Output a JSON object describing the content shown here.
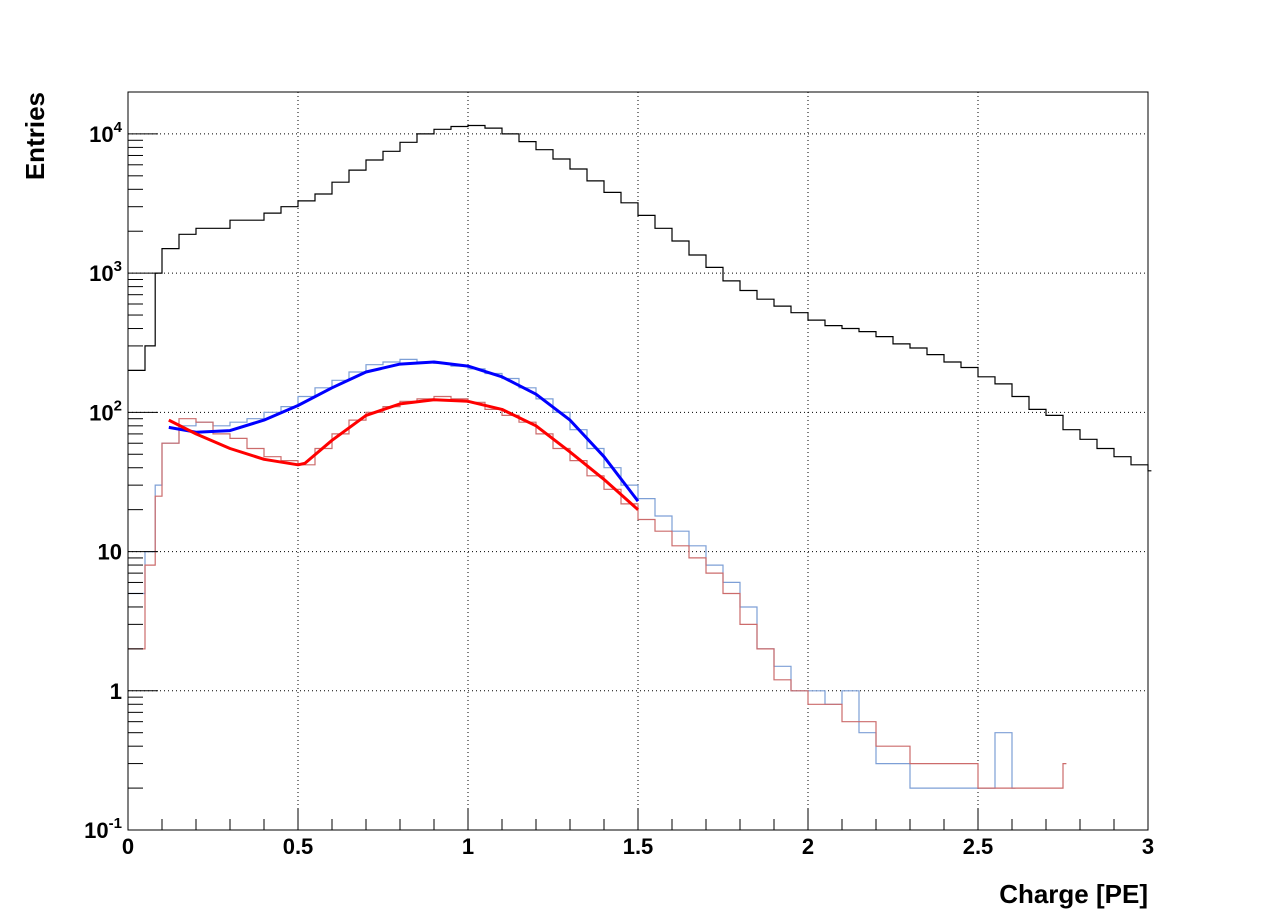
{
  "chart_data": {
    "type": "line",
    "style": "step-histogram",
    "xlabel": "Charge [PE]",
    "ylabel": "Entries",
    "xlim": [
      0,
      3
    ],
    "ylim": [
      0.1,
      20000
    ],
    "y_scale": "log",
    "grid": true,
    "x_ticks": [
      0,
      0.5,
      1,
      1.5,
      2,
      2.5,
      3
    ],
    "x_tick_labels": [
      "0",
      "0.5",
      "1",
      "1.5",
      "2",
      "2.5",
      "3"
    ],
    "y_ticks": [
      {
        "value": 0.1,
        "base": "10",
        "exp": "-1"
      },
      {
        "value": 1,
        "base": "1",
        "exp": ""
      },
      {
        "value": 10,
        "base": "10",
        "exp": ""
      },
      {
        "value": 100,
        "base": "10",
        "exp": "2"
      },
      {
        "value": 1000,
        "base": "10",
        "exp": "3"
      },
      {
        "value": 10000,
        "base": "10",
        "exp": "4"
      }
    ],
    "colors": {
      "total": "#000000",
      "blue_hist": "#7d9fd6",
      "red_hist": "#cc6b6b",
      "blue_fit": "#0000ff",
      "red_fit": "#ff0000"
    },
    "series": [
      {
        "key": "total",
        "kind": "histogram",
        "x": [
          0,
          0.05,
          0.08,
          0.1,
          0.15,
          0.2,
          0.3,
          0.4,
          0.45,
          0.5,
          0.55,
          0.6,
          0.65,
          0.7,
          0.75,
          0.8,
          0.85,
          0.9,
          0.95,
          1.0,
          1.05,
          1.1,
          1.15,
          1.2,
          1.25,
          1.3,
          1.35,
          1.4,
          1.45,
          1.5,
          1.55,
          1.6,
          1.65,
          1.7,
          1.75,
          1.8,
          1.85,
          1.9,
          1.95,
          2.0,
          2.05,
          2.1,
          2.15,
          2.2,
          2.25,
          2.3,
          2.35,
          2.4,
          2.45,
          2.5,
          2.55,
          2.6,
          2.65,
          2.7,
          2.75,
          2.8,
          2.85,
          2.9,
          2.95,
          3.0
        ],
        "y": [
          200,
          300,
          1000,
          1500,
          1900,
          2100,
          2400,
          2700,
          3000,
          3300,
          3700,
          4500,
          5500,
          6500,
          7500,
          8700,
          10000,
          10800,
          11300,
          11500,
          11000,
          10000,
          8800,
          7700,
          6600,
          5600,
          4600,
          3800,
          3200,
          2600,
          2100,
          1700,
          1350,
          1100,
          880,
          750,
          650,
          580,
          520,
          460,
          420,
          400,
          380,
          350,
          310,
          290,
          260,
          230,
          210,
          180,
          160,
          130,
          105,
          95,
          75,
          64,
          55,
          48,
          42,
          38
        ]
      },
      {
        "key": "blue_hist",
        "kind": "histogram",
        "x": [
          0,
          0.05,
          0.08,
          0.1,
          0.15,
          0.2,
          0.25,
          0.3,
          0.35,
          0.4,
          0.45,
          0.5,
          0.55,
          0.6,
          0.65,
          0.7,
          0.75,
          0.8,
          0.85,
          0.9,
          0.95,
          1.0,
          1.05,
          1.1,
          1.15,
          1.2,
          1.25,
          1.3,
          1.35,
          1.4,
          1.45,
          1.5,
          1.55,
          1.6,
          1.65,
          1.7,
          1.75,
          1.8,
          1.85,
          1.9,
          1.95,
          2.0,
          2.05,
          2.1,
          2.15,
          2.2,
          2.3,
          2.4,
          2.55,
          2.6
        ],
        "y": [
          5,
          10,
          30,
          60,
          80,
          85,
          80,
          85,
          90,
          100,
          110,
          130,
          150,
          170,
          195,
          220,
          230,
          240,
          230,
          225,
          215,
          205,
          190,
          175,
          150,
          125,
          100,
          75,
          55,
          40,
          30,
          24,
          18,
          14,
          11,
          8,
          6,
          4,
          2,
          1.5,
          1,
          1,
          0.8,
          1,
          0.5,
          0.3,
          0.2,
          0.2,
          0.5,
          0.2
        ]
      },
      {
        "key": "red_hist",
        "kind": "histogram",
        "x": [
          0,
          0.05,
          0.08,
          0.1,
          0.15,
          0.2,
          0.25,
          0.3,
          0.35,
          0.4,
          0.45,
          0.5,
          0.55,
          0.6,
          0.65,
          0.7,
          0.75,
          0.8,
          0.85,
          0.9,
          0.95,
          1.0,
          1.05,
          1.1,
          1.15,
          1.2,
          1.25,
          1.3,
          1.35,
          1.4,
          1.45,
          1.5,
          1.55,
          1.6,
          1.65,
          1.7,
          1.75,
          1.8,
          1.85,
          1.9,
          1.95,
          2.0,
          2.1,
          2.2,
          2.3,
          2.5,
          2.75
        ],
        "y": [
          2,
          8,
          25,
          60,
          90,
          85,
          70,
          65,
          55,
          48,
          45,
          42,
          55,
          70,
          88,
          100,
          110,
          120,
          125,
          130,
          125,
          118,
          105,
          95,
          85,
          70,
          55,
          45,
          35,
          28,
          22,
          17,
          14,
          11,
          9,
          7,
          5,
          3,
          2,
          1.2,
          1,
          0.8,
          0.6,
          0.4,
          0.3,
          0.2,
          0.3
        ]
      },
      {
        "key": "blue_fit",
        "kind": "curve",
        "x": [
          0.12,
          0.2,
          0.3,
          0.4,
          0.5,
          0.6,
          0.7,
          0.8,
          0.9,
          1.0,
          1.1,
          1.2,
          1.3,
          1.4,
          1.5
        ],
        "y": [
          78,
          72,
          74,
          88,
          112,
          150,
          195,
          222,
          230,
          215,
          180,
          135,
          88,
          48,
          23
        ]
      },
      {
        "key": "red_fit",
        "kind": "curve",
        "x": [
          0.12,
          0.2,
          0.3,
          0.4,
          0.5,
          0.52,
          0.6,
          0.7,
          0.8,
          0.9,
          1.0,
          1.1,
          1.2,
          1.3,
          1.4,
          1.5
        ],
        "y": [
          88,
          70,
          55,
          46,
          42,
          43,
          63,
          95,
          115,
          123,
          120,
          105,
          80,
          52,
          33,
          20
        ]
      }
    ]
  }
}
